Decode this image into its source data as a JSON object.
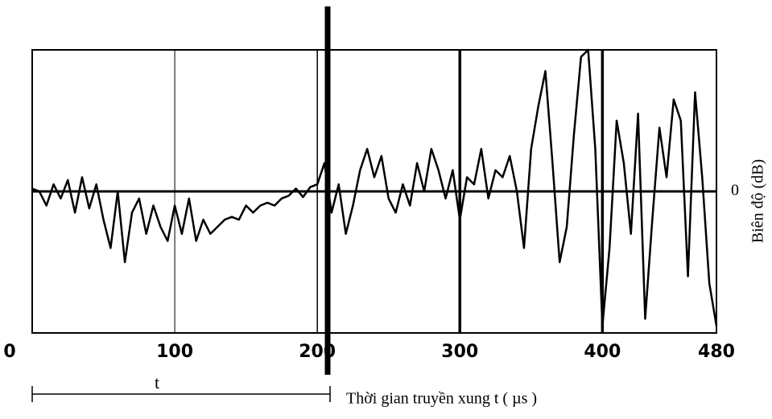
{
  "chart_data": {
    "type": "line",
    "xlabel": "Thời gian truyền xung t ( µs )",
    "ylabel": "Biên độ (dB)",
    "annotation": "t",
    "x": [
      0,
      5,
      10,
      15,
      20,
      25,
      30,
      35,
      40,
      45,
      50,
      55,
      60,
      65,
      70,
      75,
      80,
      85,
      90,
      95,
      100,
      105,
      110,
      115,
      120,
      125,
      130,
      135,
      140,
      145,
      150,
      155,
      160,
      165,
      170,
      175,
      180,
      185,
      190,
      195,
      200,
      205,
      210,
      215,
      220,
      225,
      230,
      235,
      240,
      245,
      250,
      255,
      260,
      265,
      270,
      275,
      280,
      285,
      290,
      295,
      300,
      305,
      310,
      315,
      320,
      325,
      330,
      335,
      340,
      345,
      350,
      355,
      360,
      365,
      370,
      375,
      380,
      385,
      390,
      395,
      400,
      405,
      410,
      415,
      420,
      425,
      430,
      435,
      440,
      445,
      450,
      455,
      460,
      465,
      470,
      475,
      480
    ],
    "series": [
      {
        "color": "#000000",
        "values": [
          0.02,
          0.0,
          -0.1,
          0.05,
          -0.05,
          0.08,
          -0.15,
          0.1,
          -0.12,
          0.05,
          -0.2,
          -0.4,
          0.0,
          -0.5,
          -0.15,
          -0.05,
          -0.3,
          -0.1,
          -0.25,
          -0.35,
          -0.1,
          -0.3,
          -0.05,
          -0.35,
          -0.2,
          -0.3,
          -0.25,
          -0.2,
          -0.18,
          -0.2,
          -0.1,
          -0.15,
          -0.1,
          -0.08,
          -0.1,
          -0.05,
          -0.03,
          0.02,
          -0.04,
          0.03,
          0.05,
          0.2,
          -0.15,
          0.05,
          -0.3,
          -0.1,
          0.15,
          0.3,
          0.1,
          0.25,
          -0.05,
          -0.15,
          0.05,
          -0.1,
          0.2,
          0.0,
          0.3,
          0.15,
          -0.05,
          0.15,
          -0.2,
          0.1,
          0.05,
          0.3,
          -0.05,
          0.15,
          0.1,
          0.25,
          0.0,
          -0.4,
          0.3,
          0.6,
          0.85,
          0.2,
          -0.5,
          -0.25,
          0.4,
          0.95,
          1.0,
          0.3,
          -0.95,
          -0.4,
          0.5,
          0.2,
          -0.3,
          0.55,
          -0.9,
          -0.2,
          0.45,
          0.1,
          0.65,
          0.5,
          -0.6,
          0.7,
          0.1,
          -0.65,
          -0.95
        ]
      }
    ],
    "xlim": [
      0,
      480
    ],
    "xticks": [
      0,
      100,
      200,
      300,
      400,
      480
    ],
    "ylim": [
      -1,
      1
    ],
    "yticks": [
      0
    ],
    "grid": true
  }
}
